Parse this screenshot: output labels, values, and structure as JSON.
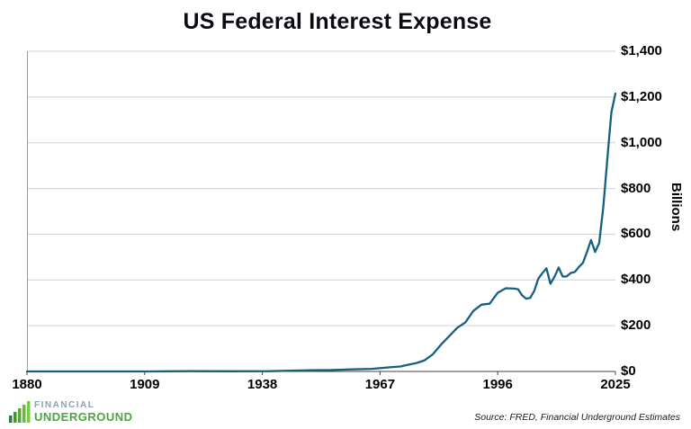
{
  "footer": {
    "source": "Source: FRED, Financial Underground Estimates",
    "logo_top": "FINANCIAL",
    "logo_bottom": "UNDERGROUND"
  },
  "colors": {
    "line": "#156082",
    "gridline": "#d0d0d0",
    "axis": "#404040",
    "left_axis": "#9a9a9a",
    "logo_green_dark": "#2e7d32",
    "logo_green_light": "#66bb3a"
  },
  "chart_data": {
    "type": "line",
    "title": "US Federal Interest Expense",
    "xlabel": "",
    "ylabel": "Billions",
    "ylim": [
      0,
      1400
    ],
    "yticks": [
      0,
      200,
      400,
      600,
      800,
      1000,
      1200,
      1400
    ],
    "ytick_labels": [
      "$0",
      "$200",
      "$400",
      "$600",
      "$800",
      "$1,000",
      "$1,200",
      "$1,400"
    ],
    "xlim": [
      1880,
      2025
    ],
    "xticks": [
      1880,
      1909,
      1938,
      1967,
      1996,
      2025
    ],
    "grid": "horizontal",
    "legend": "none",
    "line_color": "#156082",
    "series": [
      {
        "name": "US Federal Interest Expense ($B)",
        "x": [
          1880,
          1890,
          1900,
          1910,
          1920,
          1930,
          1940,
          1945,
          1950,
          1955,
          1960,
          1965,
          1970,
          1972,
          1974,
          1976,
          1978,
          1980,
          1982,
          1984,
          1986,
          1988,
          1990,
          1992,
          1994,
          1996,
          1998,
          2000,
          2001,
          2002,
          2003,
          2004,
          2005,
          2006,
          2007,
          2008,
          2009,
          2010,
          2011,
          2012,
          2013,
          2014,
          2015,
          2016,
          2017,
          2018,
          2019,
          2020,
          2021,
          2022,
          2023,
          2024,
          2025
        ],
        "y": [
          0.1,
          0.04,
          0.04,
          0.02,
          1.0,
          0.7,
          1.0,
          3.6,
          5.7,
          6.4,
          9.2,
          11.3,
          19.3,
          21.8,
          29.3,
          37.1,
          48.7,
          74.8,
          117.2,
          153.9,
          190.3,
          214.1,
          264.7,
          292.3,
          296.3,
          344.0,
          363.8,
          362.0,
          359.5,
          332.5,
          318.1,
          321.7,
          352.3,
          405.9,
          430.0,
          451.2,
          383.0,
          414.0,
          454.4,
          415.0,
          415.7,
          430.8,
          435.0,
          456.9,
          474.5,
          523.0,
          574.6,
          522.8,
          562.0,
          718.0,
          929.0,
          1133.0,
          1215.0
        ]
      }
    ]
  }
}
